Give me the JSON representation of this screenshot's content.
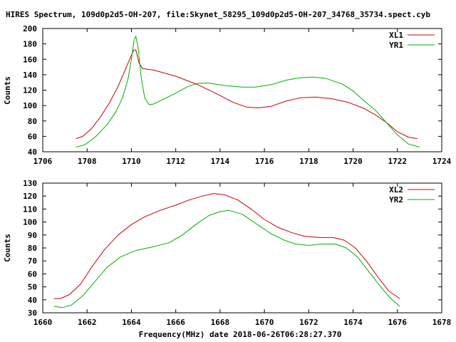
{
  "title": "HIRES Spectrum, 109d0p2d5-OH-207, file:Skynet_58295_109d0p2d5-OH-207_34768_35734.spect.cyb",
  "xlabel": "Frequency(MHz) date 2018-06-26T06:28:27.370",
  "chart_data": [
    {
      "type": "line",
      "ylabel": "Counts",
      "xlim": [
        1706,
        1724
      ],
      "ylim": [
        40,
        200
      ],
      "x_ticks": [
        "1706",
        "1708",
        "1710",
        "1712",
        "1714",
        "1716",
        "1718",
        "1720",
        "1722",
        "1724"
      ],
      "y_ticks": [
        "40",
        "60",
        "80",
        "100",
        "120",
        "140",
        "160",
        "180",
        "200"
      ],
      "grid": false,
      "legend_position": "top-right",
      "series": [
        {
          "name": "XL1",
          "color": "#cc0000",
          "points": [
            [
              1707.5,
              57
            ],
            [
              1707.8,
              60
            ],
            [
              1708.2,
              70
            ],
            [
              1708.6,
              85
            ],
            [
              1709.0,
              103
            ],
            [
              1709.4,
              125
            ],
            [
              1709.7,
              145
            ],
            [
              1709.95,
              162
            ],
            [
              1710.1,
              172
            ],
            [
              1710.2,
              172
            ],
            [
              1710.35,
              155
            ],
            [
              1710.5,
              148
            ],
            [
              1711.0,
              146
            ],
            [
              1712.0,
              138
            ],
            [
              1713.0,
              127
            ],
            [
              1714.0,
              113
            ],
            [
              1714.6,
              104
            ],
            [
              1715.2,
              98
            ],
            [
              1715.7,
              97
            ],
            [
              1716.3,
              99
            ],
            [
              1717.0,
              106
            ],
            [
              1717.6,
              110
            ],
            [
              1718.3,
              111
            ],
            [
              1719.0,
              109
            ],
            [
              1719.8,
              104
            ],
            [
              1720.5,
              96
            ],
            [
              1721.0,
              88
            ],
            [
              1721.5,
              78
            ],
            [
              1722.0,
              66
            ],
            [
              1722.5,
              59
            ],
            [
              1722.9,
              57
            ]
          ]
        },
        {
          "name": "YR1",
          "color": "#00b000",
          "points": [
            [
              1707.5,
              46
            ],
            [
              1707.9,
              49
            ],
            [
              1708.4,
              60
            ],
            [
              1708.9,
              75
            ],
            [
              1709.3,
              92
            ],
            [
              1709.6,
              110
            ],
            [
              1709.85,
              135
            ],
            [
              1710.0,
              160
            ],
            [
              1710.12,
              185
            ],
            [
              1710.2,
              190
            ],
            [
              1710.3,
              175
            ],
            [
              1710.45,
              135
            ],
            [
              1710.6,
              110
            ],
            [
              1710.8,
              101
            ],
            [
              1711.0,
              102
            ],
            [
              1711.5,
              109
            ],
            [
              1712.0,
              116
            ],
            [
              1712.5,
              124
            ],
            [
              1713.0,
              129
            ],
            [
              1713.5,
              129
            ],
            [
              1714.2,
              126
            ],
            [
              1715.0,
              124
            ],
            [
              1715.6,
              124
            ],
            [
              1716.3,
              127
            ],
            [
              1717.0,
              133
            ],
            [
              1717.6,
              136
            ],
            [
              1718.2,
              137
            ],
            [
              1718.8,
              135
            ],
            [
              1719.5,
              128
            ],
            [
              1720.0,
              119
            ],
            [
              1720.5,
              106
            ],
            [
              1721.0,
              94
            ],
            [
              1721.5,
              78
            ],
            [
              1722.0,
              62
            ],
            [
              1722.5,
              50
            ],
            [
              1723.0,
              46
            ]
          ]
        }
      ]
    },
    {
      "type": "line",
      "ylabel": "Counts",
      "xlim": [
        1660,
        1678
      ],
      "ylim": [
        30,
        130
      ],
      "x_ticks": [
        "1660",
        "1662",
        "1664",
        "1666",
        "1668",
        "1670",
        "1672",
        "1674",
        "1676",
        "1678"
      ],
      "y_ticks": [
        "30",
        "40",
        "50",
        "60",
        "70",
        "80",
        "90",
        "100",
        "110",
        "120",
        "130"
      ],
      "grid": false,
      "legend_position": "top-right",
      "series": [
        {
          "name": "XL2",
          "color": "#cc0000",
          "points": [
            [
              1660.5,
              41
            ],
            [
              1660.8,
              41
            ],
            [
              1661.2,
              44
            ],
            [
              1661.7,
              52
            ],
            [
              1662.2,
              65
            ],
            [
              1662.8,
              79
            ],
            [
              1663.4,
              90
            ],
            [
              1664.0,
              98
            ],
            [
              1664.6,
              104
            ],
            [
              1665.3,
              109
            ],
            [
              1666.0,
              113
            ],
            [
              1666.6,
              117
            ],
            [
              1667.2,
              120
            ],
            [
              1667.7,
              122
            ],
            [
              1668.2,
              121
            ],
            [
              1668.8,
              117
            ],
            [
              1669.4,
              110
            ],
            [
              1670.0,
              102
            ],
            [
              1670.6,
              96
            ],
            [
              1671.2,
              92
            ],
            [
              1671.8,
              89
            ],
            [
              1672.5,
              88
            ],
            [
              1673.1,
              88
            ],
            [
              1673.6,
              86
            ],
            [
              1674.1,
              80
            ],
            [
              1674.6,
              70
            ],
            [
              1675.1,
              58
            ],
            [
              1675.6,
              47
            ],
            [
              1676.1,
              41
            ]
          ]
        },
        {
          "name": "YR2",
          "color": "#00b000",
          "points": [
            [
              1660.5,
              35
            ],
            [
              1660.9,
              34
            ],
            [
              1661.3,
              36
            ],
            [
              1661.8,
              43
            ],
            [
              1662.3,
              53
            ],
            [
              1662.9,
              65
            ],
            [
              1663.5,
              73
            ],
            [
              1664.2,
              78
            ],
            [
              1665.0,
              81
            ],
            [
              1665.7,
              84
            ],
            [
              1666.3,
              90
            ],
            [
              1666.9,
              98
            ],
            [
              1667.5,
              105
            ],
            [
              1668.0,
              108
            ],
            [
              1668.4,
              109
            ],
            [
              1669.0,
              106
            ],
            [
              1669.6,
              99
            ],
            [
              1670.3,
              91
            ],
            [
              1670.9,
              86
            ],
            [
              1671.4,
              83
            ],
            [
              1672.0,
              82
            ],
            [
              1672.6,
              83
            ],
            [
              1673.2,
              83
            ],
            [
              1673.7,
              80
            ],
            [
              1674.2,
              73
            ],
            [
              1674.7,
              62
            ],
            [
              1675.2,
              51
            ],
            [
              1675.7,
              41
            ],
            [
              1676.1,
              35
            ]
          ]
        }
      ]
    }
  ]
}
